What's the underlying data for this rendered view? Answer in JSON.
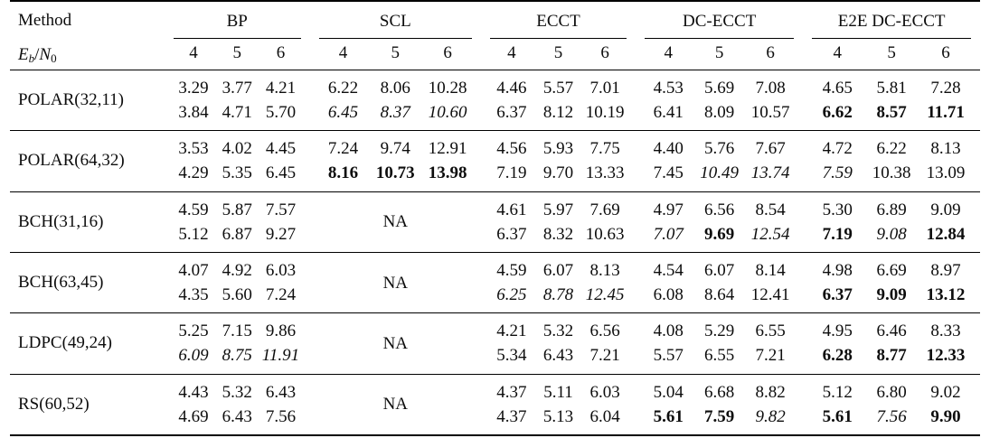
{
  "header": {
    "method_label": "Method",
    "snr_label": {
      "E": "E",
      "b": "b",
      "slash": "/",
      "N": "N",
      "zero": "0"
    }
  },
  "columns": [
    {
      "label": "BP"
    },
    {
      "label": "SCL"
    },
    {
      "label": "ECCT"
    },
    {
      "label": "DC-ECCT"
    },
    {
      "label": "E2E DC-ECCT"
    }
  ],
  "snr_values": [
    "4",
    "5",
    "6"
  ],
  "na_label": "NA",
  "colors": {
    "text": "#0d0d0d",
    "rule": "#000000",
    "background": "#ffffff"
  },
  "rows": [
    {
      "method": "POLAR(32,11)",
      "cells": [
        {
          "lines": [
            [
              {
                "v": "3.29",
                "s": "n"
              },
              {
                "v": "3.77",
                "s": "n"
              },
              {
                "v": "4.21",
                "s": "n"
              }
            ],
            [
              {
                "v": "3.84",
                "s": "n"
              },
              {
                "v": "4.71",
                "s": "n"
              },
              {
                "v": "5.70",
                "s": "n"
              }
            ]
          ]
        },
        {
          "lines": [
            [
              {
                "v": "6.22",
                "s": "n"
              },
              {
                "v": "8.06",
                "s": "n"
              },
              {
                "v": "10.28",
                "s": "n"
              }
            ],
            [
              {
                "v": "6.45",
                "s": "i"
              },
              {
                "v": "8.37",
                "s": "i"
              },
              {
                "v": "10.60",
                "s": "i"
              }
            ]
          ]
        },
        {
          "lines": [
            [
              {
                "v": "4.46",
                "s": "n"
              },
              {
                "v": "5.57",
                "s": "n"
              },
              {
                "v": "7.01",
                "s": "n"
              }
            ],
            [
              {
                "v": "6.37",
                "s": "n"
              },
              {
                "v": "8.12",
                "s": "n"
              },
              {
                "v": "10.19",
                "s": "n"
              }
            ]
          ]
        },
        {
          "lines": [
            [
              {
                "v": "4.53",
                "s": "n"
              },
              {
                "v": "5.69",
                "s": "n"
              },
              {
                "v": "7.08",
                "s": "n"
              }
            ],
            [
              {
                "v": "6.41",
                "s": "n"
              },
              {
                "v": "8.09",
                "s": "n"
              },
              {
                "v": "10.57",
                "s": "n"
              }
            ]
          ]
        },
        {
          "lines": [
            [
              {
                "v": "4.65",
                "s": "n"
              },
              {
                "v": "5.81",
                "s": "n"
              },
              {
                "v": "7.28",
                "s": "n"
              }
            ],
            [
              {
                "v": "6.62",
                "s": "b"
              },
              {
                "v": "8.57",
                "s": "b"
              },
              {
                "v": "11.71",
                "s": "b"
              }
            ]
          ]
        }
      ]
    },
    {
      "method": "POLAR(64,32)",
      "cells": [
        {
          "lines": [
            [
              {
                "v": "3.53",
                "s": "n"
              },
              {
                "v": "4.02",
                "s": "n"
              },
              {
                "v": "4.45",
                "s": "n"
              }
            ],
            [
              {
                "v": "4.29",
                "s": "n"
              },
              {
                "v": "5.35",
                "s": "n"
              },
              {
                "v": "6.45",
                "s": "n"
              }
            ]
          ]
        },
        {
          "lines": [
            [
              {
                "v": "7.24",
                "s": "n"
              },
              {
                "v": "9.74",
                "s": "n"
              },
              {
                "v": "12.91",
                "s": "n"
              }
            ],
            [
              {
                "v": "8.16",
                "s": "b"
              },
              {
                "v": "10.73",
                "s": "b"
              },
              {
                "v": "13.98",
                "s": "b"
              }
            ]
          ]
        },
        {
          "lines": [
            [
              {
                "v": "4.56",
                "s": "n"
              },
              {
                "v": "5.93",
                "s": "n"
              },
              {
                "v": "7.75",
                "s": "n"
              }
            ],
            [
              {
                "v": "7.19",
                "s": "n"
              },
              {
                "v": "9.70",
                "s": "n"
              },
              {
                "v": "13.33",
                "s": "n"
              }
            ]
          ]
        },
        {
          "lines": [
            [
              {
                "v": "4.40",
                "s": "n"
              },
              {
                "v": "5.76",
                "s": "n"
              },
              {
                "v": "7.67",
                "s": "n"
              }
            ],
            [
              {
                "v": "7.45",
                "s": "n"
              },
              {
                "v": "10.49",
                "s": "i"
              },
              {
                "v": "13.74",
                "s": "i"
              }
            ]
          ]
        },
        {
          "lines": [
            [
              {
                "v": "4.72",
                "s": "n"
              },
              {
                "v": "6.22",
                "s": "n"
              },
              {
                "v": "8.13",
                "s": "n"
              }
            ],
            [
              {
                "v": "7.59",
                "s": "i"
              },
              {
                "v": "10.38",
                "s": "n"
              },
              {
                "v": "13.09",
                "s": "n"
              }
            ]
          ]
        }
      ]
    },
    {
      "method": "BCH(31,16)",
      "cells": [
        {
          "lines": [
            [
              {
                "v": "4.59",
                "s": "n"
              },
              {
                "v": "5.87",
                "s": "n"
              },
              {
                "v": "7.57",
                "s": "n"
              }
            ],
            [
              {
                "v": "5.12",
                "s": "n"
              },
              {
                "v": "6.87",
                "s": "n"
              },
              {
                "v": "9.27",
                "s": "n"
              }
            ]
          ]
        },
        {
          "na": true
        },
        {
          "lines": [
            [
              {
                "v": "4.61",
                "s": "n"
              },
              {
                "v": "5.97",
                "s": "n"
              },
              {
                "v": "7.69",
                "s": "n"
              }
            ],
            [
              {
                "v": "6.37",
                "s": "n"
              },
              {
                "v": "8.32",
                "s": "n"
              },
              {
                "v": "10.63",
                "s": "n"
              }
            ]
          ]
        },
        {
          "lines": [
            [
              {
                "v": "4.97",
                "s": "n"
              },
              {
                "v": "6.56",
                "s": "n"
              },
              {
                "v": "8.54",
                "s": "n"
              }
            ],
            [
              {
                "v": "7.07",
                "s": "i"
              },
              {
                "v": "9.69",
                "s": "b"
              },
              {
                "v": "12.54",
                "s": "i"
              }
            ]
          ]
        },
        {
          "lines": [
            [
              {
                "v": "5.30",
                "s": "n"
              },
              {
                "v": "6.89",
                "s": "n"
              },
              {
                "v": "9.09",
                "s": "n"
              }
            ],
            [
              {
                "v": "7.19",
                "s": "b"
              },
              {
                "v": "9.08",
                "s": "i"
              },
              {
                "v": "12.84",
                "s": "b"
              }
            ]
          ]
        }
      ]
    },
    {
      "method": "BCH(63,45)",
      "cells": [
        {
          "lines": [
            [
              {
                "v": "4.07",
                "s": "n"
              },
              {
                "v": "4.92",
                "s": "n"
              },
              {
                "v": "6.03",
                "s": "n"
              }
            ],
            [
              {
                "v": "4.35",
                "s": "n"
              },
              {
                "v": "5.60",
                "s": "n"
              },
              {
                "v": "7.24",
                "s": "n"
              }
            ]
          ]
        },
        {
          "na": true
        },
        {
          "lines": [
            [
              {
                "v": "4.59",
                "s": "n"
              },
              {
                "v": "6.07",
                "s": "n"
              },
              {
                "v": "8.13",
                "s": "n"
              }
            ],
            [
              {
                "v": "6.25",
                "s": "i"
              },
              {
                "v": "8.78",
                "s": "i"
              },
              {
                "v": "12.45",
                "s": "i"
              }
            ]
          ]
        },
        {
          "lines": [
            [
              {
                "v": "4.54",
                "s": "n"
              },
              {
                "v": "6.07",
                "s": "n"
              },
              {
                "v": "8.14",
                "s": "n"
              }
            ],
            [
              {
                "v": "6.08",
                "s": "n"
              },
              {
                "v": "8.64",
                "s": "n"
              },
              {
                "v": "12.41",
                "s": "n"
              }
            ]
          ]
        },
        {
          "lines": [
            [
              {
                "v": "4.98",
                "s": "n"
              },
              {
                "v": "6.69",
                "s": "n"
              },
              {
                "v": "8.97",
                "s": "n"
              }
            ],
            [
              {
                "v": "6.37",
                "s": "b"
              },
              {
                "v": "9.09",
                "s": "b"
              },
              {
                "v": "13.12",
                "s": "b"
              }
            ]
          ]
        }
      ]
    },
    {
      "method": "LDPC(49,24)",
      "cells": [
        {
          "lines": [
            [
              {
                "v": "5.25",
                "s": "n"
              },
              {
                "v": "7.15",
                "s": "n"
              },
              {
                "v": "9.86",
                "s": "n"
              }
            ],
            [
              {
                "v": "6.09",
                "s": "i"
              },
              {
                "v": "8.75",
                "s": "i"
              },
              {
                "v": "11.91",
                "s": "i"
              }
            ]
          ]
        },
        {
          "na": true
        },
        {
          "lines": [
            [
              {
                "v": "4.21",
                "s": "n"
              },
              {
                "v": "5.32",
                "s": "n"
              },
              {
                "v": "6.56",
                "s": "n"
              }
            ],
            [
              {
                "v": "5.34",
                "s": "n"
              },
              {
                "v": "6.43",
                "s": "n"
              },
              {
                "v": "7.21",
                "s": "n"
              }
            ]
          ]
        },
        {
          "lines": [
            [
              {
                "v": "4.08",
                "s": "n"
              },
              {
                "v": "5.29",
                "s": "n"
              },
              {
                "v": "6.55",
                "s": "n"
              }
            ],
            [
              {
                "v": "5.57",
                "s": "n"
              },
              {
                "v": "6.55",
                "s": "n"
              },
              {
                "v": "7.21",
                "s": "n"
              }
            ]
          ]
        },
        {
          "lines": [
            [
              {
                "v": "4.95",
                "s": "n"
              },
              {
                "v": "6.46",
                "s": "n"
              },
              {
                "v": "8.33",
                "s": "n"
              }
            ],
            [
              {
                "v": "6.28",
                "s": "b"
              },
              {
                "v": "8.77",
                "s": "b"
              },
              {
                "v": "12.33",
                "s": "b"
              }
            ]
          ]
        }
      ]
    },
    {
      "method": "RS(60,52)",
      "cells": [
        {
          "lines": [
            [
              {
                "v": "4.43",
                "s": "n"
              },
              {
                "v": "5.32",
                "s": "n"
              },
              {
                "v": "6.43",
                "s": "n"
              }
            ],
            [
              {
                "v": "4.69",
                "s": "n"
              },
              {
                "v": "6.43",
                "s": "n"
              },
              {
                "v": "7.56",
                "s": "n"
              }
            ]
          ]
        },
        {
          "na": true
        },
        {
          "lines": [
            [
              {
                "v": "4.37",
                "s": "n"
              },
              {
                "v": "5.11",
                "s": "n"
              },
              {
                "v": "6.03",
                "s": "n"
              }
            ],
            [
              {
                "v": "4.37",
                "s": "n"
              },
              {
                "v": "5.13",
                "s": "n"
              },
              {
                "v": "6.04",
                "s": "n"
              }
            ]
          ]
        },
        {
          "lines": [
            [
              {
                "v": "5.04",
                "s": "n"
              },
              {
                "v": "6.68",
                "s": "n"
              },
              {
                "v": "8.82",
                "s": "n"
              }
            ],
            [
              {
                "v": "5.61",
                "s": "b"
              },
              {
                "v": "7.59",
                "s": "b"
              },
              {
                "v": "9.82",
                "s": "i"
              }
            ]
          ]
        },
        {
          "lines": [
            [
              {
                "v": "5.12",
                "s": "n"
              },
              {
                "v": "6.80",
                "s": "n"
              },
              {
                "v": "9.02",
                "s": "n"
              }
            ],
            [
              {
                "v": "5.61",
                "s": "b"
              },
              {
                "v": "7.56",
                "s": "i"
              },
              {
                "v": "9.90",
                "s": "b"
              }
            ]
          ]
        }
      ]
    }
  ]
}
